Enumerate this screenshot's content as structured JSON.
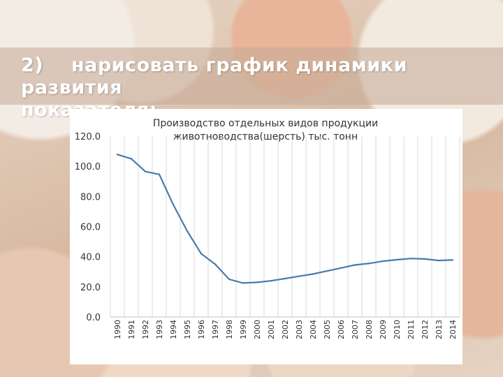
{
  "slide": {
    "number": "2)",
    "heading_line1": "нарисовать график динамики развития",
    "heading_line2": "показателя;"
  },
  "chart_data": {
    "type": "line",
    "title_line1": "Производство отдельных видов продукции",
    "title_line2": "животноводства(шерсть) тыс. тонн",
    "xlabel": "",
    "ylabel": "",
    "ylim": [
      0,
      120
    ],
    "yticks": [
      "0.0",
      "20.0",
      "40.0",
      "60.0",
      "80.0",
      "100.0",
      "120.0"
    ],
    "grid": "vertical",
    "line_color": "#4a7ab0",
    "x": [
      "1990",
      "1991",
      "1992",
      "1993",
      "1994",
      "1995",
      "1996",
      "1997",
      "1998",
      "1999",
      "2000",
      "2001",
      "2002",
      "2003",
      "2004",
      "2005",
      "2006",
      "2007",
      "2008",
      "2009",
      "2010",
      "2011",
      "2012",
      "2013",
      "2014"
    ],
    "values": [
      107.8,
      105.0,
      96.5,
      94.6,
      74.5,
      57.0,
      42.0,
      35.0,
      25.0,
      22.5,
      23.0,
      24.0,
      25.5,
      27.0,
      28.5,
      30.5,
      32.5,
      34.5,
      35.5,
      37.0,
      38.0,
      38.8,
      38.5,
      37.5,
      37.8
    ]
  }
}
